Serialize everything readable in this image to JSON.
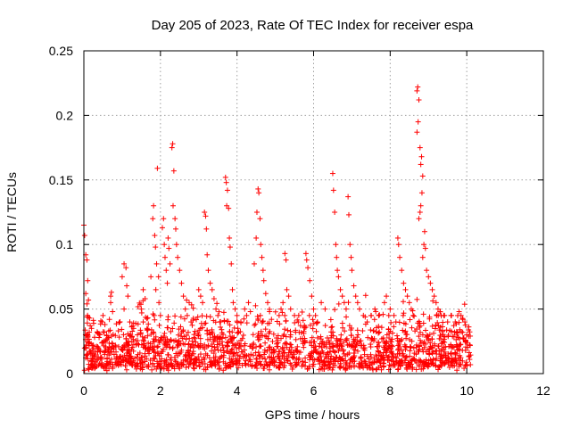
{
  "chart_data": {
    "type": "scatter",
    "title": "Day 205 of 2023, Rate Of TEC Index for receiver espa",
    "xlabel": "GPS time / hours",
    "ylabel": "ROTI / TECUs",
    "xlim": [
      0,
      12
    ],
    "ylim": [
      0,
      0.25
    ],
    "xticks": [
      0,
      2,
      4,
      6,
      8,
      10,
      12
    ],
    "xtick_labels": [
      "0",
      "2",
      "4",
      "6",
      "8",
      "10",
      "12"
    ],
    "yticks": [
      0,
      0.05,
      0.1,
      0.15,
      0.2,
      0.25
    ],
    "ytick_labels": [
      "0",
      "0.05",
      "0.1",
      "0.15",
      "0.2",
      "0.25"
    ],
    "grid": true,
    "marker": "+",
    "marker_color": "#ff0000",
    "series": [
      {
        "name": "ROTI",
        "data_range_x": [
          0,
          10.1
        ],
        "points": [
          [
            0.0,
            0.115
          ],
          [
            0.02,
            0.107
          ],
          [
            0.05,
            0.092
          ],
          [
            0.08,
            0.088
          ],
          [
            0.1,
            0.072
          ],
          [
            0.12,
            0.057
          ],
          [
            0.15,
            0.043
          ],
          [
            0.2,
            0.035
          ],
          [
            0.05,
            0.062
          ],
          [
            0.1,
            0.03
          ],
          [
            0.5,
            0.045
          ],
          [
            0.55,
            0.038
          ],
          [
            0.7,
            0.055
          ],
          [
            0.75,
            0.048
          ],
          [
            0.65,
            0.028
          ],
          [
            0.7,
            0.06
          ],
          [
            0.72,
            0.063
          ],
          [
            1.05,
            0.085
          ],
          [
            1.1,
            0.082
          ],
          [
            1.0,
            0.075
          ],
          [
            1.12,
            0.068
          ],
          [
            1.15,
            0.06
          ],
          [
            1.05,
            0.05
          ],
          [
            1.2,
            0.04
          ],
          [
            1.3,
            0.035
          ],
          [
            1.4,
            0.03
          ],
          [
            1.55,
            0.065
          ],
          [
            1.6,
            0.058
          ],
          [
            1.5,
            0.05
          ],
          [
            1.55,
            0.04
          ],
          [
            1.65,
            0.035
          ],
          [
            1.75,
            0.075
          ],
          [
            1.8,
            0.12
          ],
          [
            1.82,
            0.13
          ],
          [
            1.85,
            0.107
          ],
          [
            1.87,
            0.098
          ],
          [
            1.9,
            0.085
          ],
          [
            1.95,
            0.075
          ],
          [
            1.88,
            0.065
          ],
          [
            1.92,
            0.159
          ],
          [
            1.96,
            0.055
          ],
          [
            2.0,
            0.045
          ],
          [
            2.05,
            0.113
          ],
          [
            2.08,
            0.12
          ],
          [
            2.1,
            0.1
          ],
          [
            2.12,
            0.09
          ],
          [
            2.15,
            0.08
          ],
          [
            2.18,
            0.07
          ],
          [
            2.2,
            0.105
          ],
          [
            2.22,
            0.097
          ],
          [
            2.25,
            0.085
          ],
          [
            2.3,
            0.175
          ],
          [
            2.32,
            0.178
          ],
          [
            2.35,
            0.157
          ],
          [
            2.33,
            0.13
          ],
          [
            2.38,
            0.12
          ],
          [
            2.4,
            0.112
          ],
          [
            2.42,
            0.1
          ],
          [
            2.45,
            0.09
          ],
          [
            2.5,
            0.08
          ],
          [
            2.55,
            0.07
          ],
          [
            2.6,
            0.06
          ],
          [
            2.65,
            0.05
          ],
          [
            2.7,
            0.045
          ],
          [
            2.75,
            0.055
          ],
          [
            2.8,
            0.04
          ],
          [
            3.0,
            0.065
          ],
          [
            3.05,
            0.06
          ],
          [
            3.1,
            0.055
          ],
          [
            3.15,
            0.125
          ],
          [
            3.18,
            0.122
          ],
          [
            3.2,
            0.112
          ],
          [
            3.22,
            0.092
          ],
          [
            3.25,
            0.08
          ],
          [
            3.3,
            0.07
          ],
          [
            3.35,
            0.065
          ],
          [
            3.4,
            0.058
          ],
          [
            3.45,
            0.05
          ],
          [
            3.5,
            0.045
          ],
          [
            3.55,
            0.04
          ],
          [
            3.7,
            0.152
          ],
          [
            3.72,
            0.148
          ],
          [
            3.75,
            0.142
          ],
          [
            3.73,
            0.13
          ],
          [
            3.78,
            0.128
          ],
          [
            3.8,
            0.105
          ],
          [
            3.82,
            0.098
          ],
          [
            3.85,
            0.085
          ],
          [
            3.88,
            0.065
          ],
          [
            3.9,
            0.055
          ],
          [
            3.95,
            0.05
          ],
          [
            4.0,
            0.045
          ],
          [
            4.1,
            0.04
          ],
          [
            4.2,
            0.05
          ],
          [
            4.25,
            0.045
          ],
          [
            4.3,
            0.055
          ],
          [
            4.35,
            0.048
          ],
          [
            4.45,
            0.085
          ],
          [
            4.5,
            0.105
          ],
          [
            4.52,
            0.125
          ],
          [
            4.55,
            0.143
          ],
          [
            4.57,
            0.14
          ],
          [
            4.6,
            0.12
          ],
          [
            4.62,
            0.1
          ],
          [
            4.65,
            0.09
          ],
          [
            4.68,
            0.08
          ],
          [
            4.7,
            0.072
          ],
          [
            4.75,
            0.062
          ],
          [
            4.8,
            0.055
          ],
          [
            4.85,
            0.048
          ],
          [
            4.9,
            0.042
          ],
          [
            5.1,
            0.045
          ],
          [
            5.15,
            0.05
          ],
          [
            5.2,
            0.055
          ],
          [
            5.25,
            0.093
          ],
          [
            5.28,
            0.088
          ],
          [
            5.3,
            0.065
          ],
          [
            5.35,
            0.06
          ],
          [
            5.4,
            0.05
          ],
          [
            5.5,
            0.045
          ],
          [
            5.6,
            0.04
          ],
          [
            5.8,
            0.093
          ],
          [
            5.82,
            0.088
          ],
          [
            5.85,
            0.082
          ],
          [
            5.9,
            0.072
          ],
          [
            5.95,
            0.06
          ],
          [
            6.0,
            0.05
          ],
          [
            6.05,
            0.045
          ],
          [
            6.1,
            0.04
          ],
          [
            6.2,
            0.055
          ],
          [
            6.3,
            0.05
          ],
          [
            6.5,
            0.155
          ],
          [
            6.52,
            0.142
          ],
          [
            6.55,
            0.125
          ],
          [
            6.58,
            0.1
          ],
          [
            6.6,
            0.09
          ],
          [
            6.62,
            0.08
          ],
          [
            6.65,
            0.075
          ],
          [
            6.7,
            0.065
          ],
          [
            6.75,
            0.06
          ],
          [
            6.8,
            0.055
          ],
          [
            6.85,
            0.05
          ],
          [
            6.9,
            0.137
          ],
          [
            6.92,
            0.123
          ],
          [
            6.95,
            0.1
          ],
          [
            6.98,
            0.09
          ],
          [
            7.0,
            0.08
          ],
          [
            7.05,
            0.068
          ],
          [
            7.1,
            0.06
          ],
          [
            7.15,
            0.055
          ],
          [
            7.2,
            0.05
          ],
          [
            7.3,
            0.045
          ],
          [
            7.4,
            0.04
          ],
          [
            7.5,
            0.045
          ],
          [
            7.6,
            0.05
          ],
          [
            7.7,
            0.045
          ],
          [
            7.85,
            0.055
          ],
          [
            7.9,
            0.06
          ],
          [
            8.0,
            0.05
          ],
          [
            8.1,
            0.045
          ],
          [
            8.15,
            0.04
          ],
          [
            8.2,
            0.105
          ],
          [
            8.22,
            0.1
          ],
          [
            8.25,
            0.09
          ],
          [
            8.3,
            0.08
          ],
          [
            8.35,
            0.07
          ],
          [
            8.4,
            0.065
          ],
          [
            8.45,
            0.06
          ],
          [
            8.5,
            0.055
          ],
          [
            8.55,
            0.05
          ],
          [
            8.6,
            0.045
          ],
          [
            8.7,
            0.219
          ],
          [
            8.72,
            0.222
          ],
          [
            8.75,
            0.212
          ],
          [
            8.73,
            0.195
          ],
          [
            8.7,
            0.187
          ],
          [
            8.78,
            0.175
          ],
          [
            8.82,
            0.168
          ],
          [
            8.8,
            0.162
          ],
          [
            8.85,
            0.153
          ],
          [
            8.83,
            0.14
          ],
          [
            8.8,
            0.13
          ],
          [
            8.78,
            0.125
          ],
          [
            8.75,
            0.12
          ],
          [
            8.9,
            0.11
          ],
          [
            8.88,
            0.1
          ],
          [
            8.92,
            0.097
          ],
          [
            8.85,
            0.09
          ],
          [
            8.95,
            0.08
          ],
          [
            9.0,
            0.075
          ],
          [
            9.05,
            0.07
          ],
          [
            9.1,
            0.065
          ],
          [
            9.15,
            0.06
          ],
          [
            9.2,
            0.055
          ],
          [
            9.25,
            0.05
          ],
          [
            9.3,
            0.048
          ],
          [
            9.4,
            0.045
          ],
          [
            9.5,
            0.04
          ],
          [
            9.6,
            0.045
          ],
          [
            9.7,
            0.04
          ],
          [
            9.8,
            0.048
          ],
          [
            9.85,
            0.045
          ],
          [
            9.9,
            0.042
          ],
          [
            9.95,
            0.04
          ],
          [
            10.0,
            0.03
          ]
        ],
        "bulk_band": {
          "description": "Dense cloud of low ROTI values across the observation window",
          "x_range": [
            0,
            10.1
          ],
          "y_range": [
            0.002,
            0.04
          ],
          "typical_y": 0.015
        }
      }
    ]
  }
}
